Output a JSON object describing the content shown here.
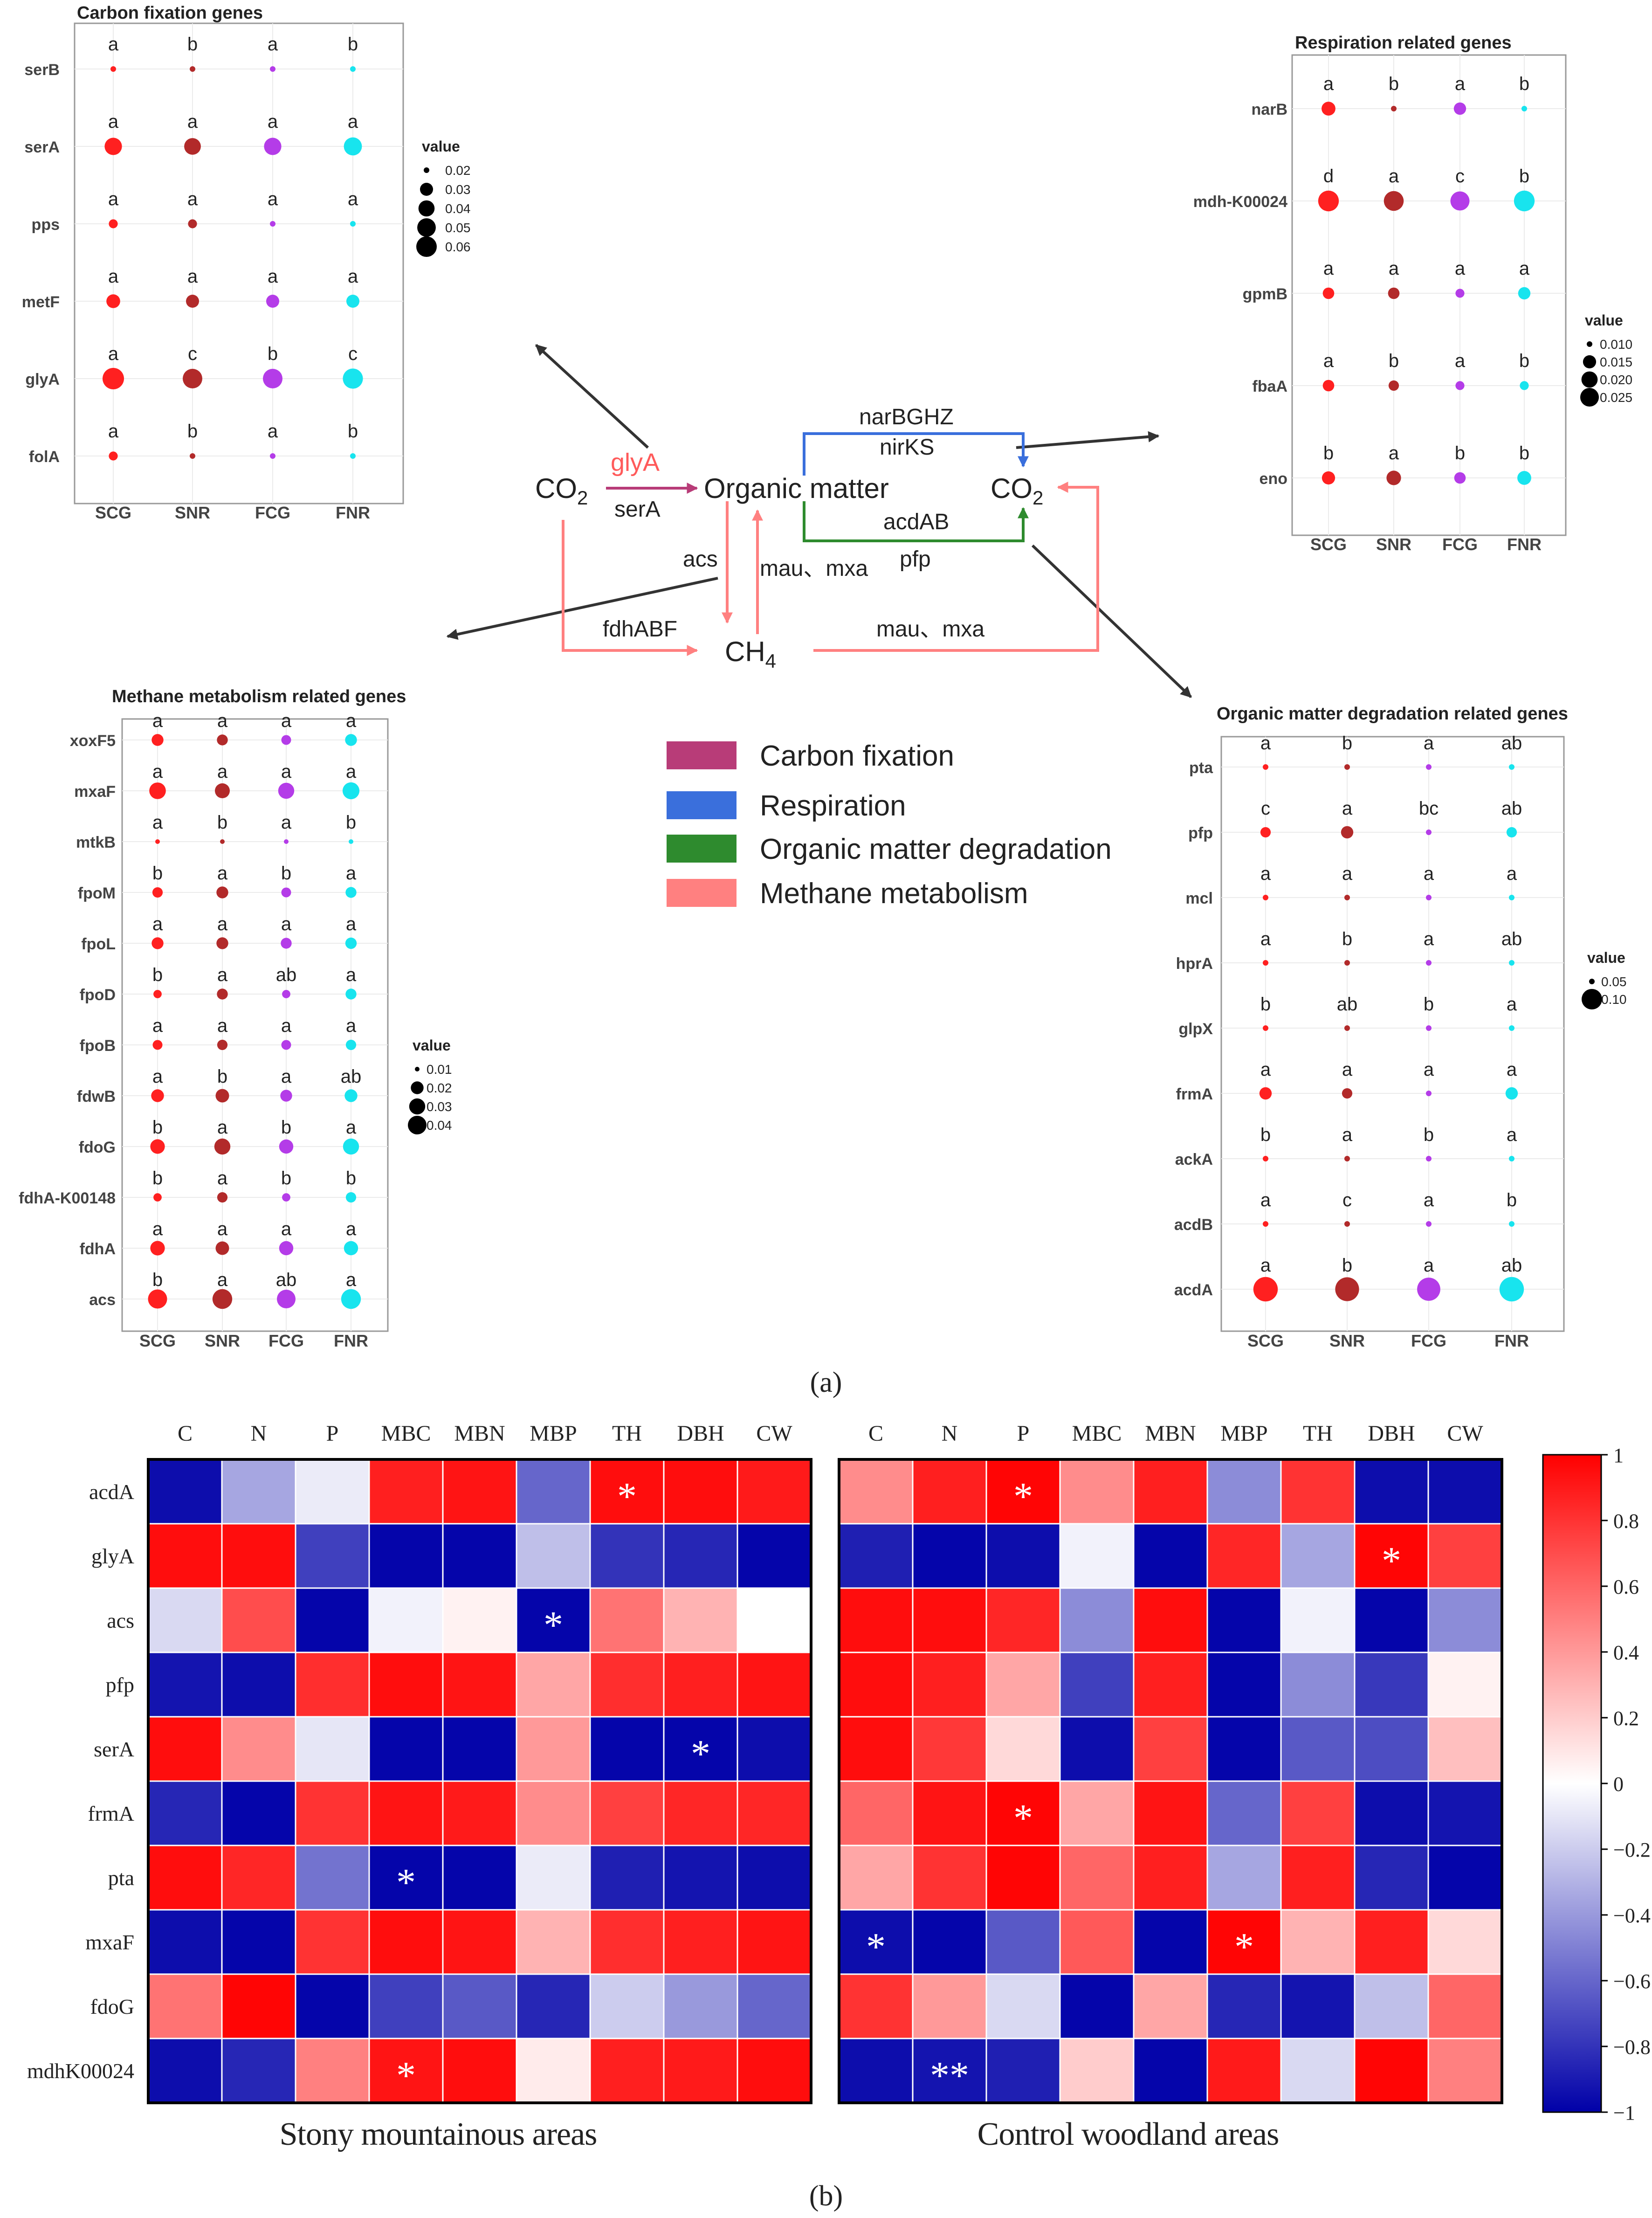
{
  "figure": {
    "panel_a_label": "(a)",
    "panel_b_label": "(b)"
  },
  "diagram": {
    "nodes": {
      "co2_left": "CO2",
      "organic_matter": "Organic matter",
      "co2_right": "CO2",
      "ch4": "CH4"
    },
    "edge_labels": {
      "glyA": "glyA",
      "serA": "serA",
      "narBGHZ": "narBGHZ",
      "nirKS": "nirKS",
      "acdAB": "acdAB",
      "pfp": "pfp",
      "acs": "acs",
      "mau_mxa_up": "mau、mxa",
      "fdhABF": "fdhABF",
      "mau_mxa_right": "mau、mxa"
    },
    "colors": {
      "carbon_fixation": "#b83c78",
      "respiration": "#3a6fdc",
      "organic_degradation": "#2e8b2e",
      "methane": "#ff8080",
      "pointer": "#333333",
      "glyA_text": "#ff5a5a"
    },
    "legend": [
      {
        "label": "Carbon fixation",
        "color": "#b83c78"
      },
      {
        "label": "Respiration",
        "color": "#3a6fdc"
      },
      {
        "label": "Organic matter degradation",
        "color": "#2e8b2e"
      },
      {
        "label": "Methane metabolism",
        "color": "#ff8080"
      }
    ]
  },
  "chart_data": [
    {
      "type": "scatter",
      "id": "carbon",
      "title": "Carbon fixation genes",
      "groups": [
        "SCG",
        "SNR",
        "FCG",
        "FNR"
      ],
      "group_colors": [
        "#ff2020",
        "#b22a2a",
        "#b43ce8",
        "#18e4ee"
      ],
      "genes": [
        {
          "name": "serB",
          "values": [
            0.015,
            0.007,
            0.015,
            0.012
          ],
          "letters": [
            "a",
            "b",
            "a",
            "b"
          ]
        },
        {
          "name": "serA",
          "values": [
            0.045,
            0.042,
            0.045,
            0.048
          ],
          "letters": [
            "a",
            "a",
            "a",
            "a"
          ]
        },
        {
          "name": "pps",
          "values": [
            0.022,
            0.022,
            0.018,
            0.02
          ],
          "letters": [
            "a",
            "a",
            "a",
            "a"
          ]
        },
        {
          "name": "metF",
          "values": [
            0.032,
            0.03,
            0.03,
            0.03
          ],
          "letters": [
            "a",
            "a",
            "a",
            "a"
          ]
        },
        {
          "name": "glyA",
          "values": [
            0.065,
            0.055,
            0.055,
            0.058
          ],
          "letters": [
            "a",
            "c",
            "b",
            "c"
          ]
        },
        {
          "name": "folA",
          "values": [
            0.022,
            0.016,
            0.018,
            0.016
          ],
          "letters": [
            "a",
            "b",
            "a",
            "b"
          ]
        }
      ],
      "legend": {
        "title": "value",
        "breaks": [
          0.02,
          0.03,
          0.04,
          0.05,
          0.06
        ],
        "labels": [
          "0.02",
          "0.03",
          "0.04",
          "0.05",
          "0.06"
        ]
      }
    },
    {
      "type": "scatter",
      "id": "resp",
      "title": "Respiration related genes",
      "groups": [
        "SCG",
        "SNR",
        "FCG",
        "FNR"
      ],
      "group_colors": [
        "#ff2020",
        "#b22a2a",
        "#b43ce8",
        "#18e4ee"
      ],
      "genes": [
        {
          "name": "narB",
          "values": [
            0.016,
            0.005,
            0.014,
            0.008
          ],
          "letters": [
            "a",
            "b",
            "a",
            "b"
          ]
        },
        {
          "name": "mdh-K00024",
          "values": [
            0.03,
            0.028,
            0.026,
            0.03
          ],
          "letters": [
            "d",
            "a",
            "c",
            "b"
          ]
        },
        {
          "name": "gpmB",
          "values": [
            0.013,
            0.013,
            0.011,
            0.014
          ],
          "letters": [
            "a",
            "a",
            "a",
            "a"
          ]
        },
        {
          "name": "fbaA",
          "values": [
            0.013,
            0.012,
            0.011,
            0.011
          ],
          "letters": [
            "a",
            "b",
            "a",
            "b"
          ]
        },
        {
          "name": "eno",
          "values": [
            0.015,
            0.017,
            0.013,
            0.016
          ],
          "letters": [
            "b",
            "a",
            "b",
            "b"
          ]
        }
      ],
      "legend": {
        "title": "value",
        "breaks": [
          0.01,
          0.015,
          0.02,
          0.025
        ],
        "labels": [
          "0.010",
          "0.015",
          "0.020",
          "0.025"
        ]
      }
    },
    {
      "type": "scatter",
      "id": "methane",
      "title": "Methane metabolism related genes",
      "groups": [
        "SCG",
        "SNR",
        "FCG",
        "FNR"
      ],
      "group_colors": [
        "#ff2020",
        "#b22a2a",
        "#b43ce8",
        "#18e4ee"
      ],
      "genes": [
        {
          "name": "xoxF5",
          "values": [
            0.018,
            0.016,
            0.014,
            0.018
          ],
          "letters": [
            "a",
            "a",
            "a",
            "a"
          ]
        },
        {
          "name": "mxaF",
          "values": [
            0.032,
            0.026,
            0.03,
            0.033
          ],
          "letters": [
            "a",
            "a",
            "a",
            "a"
          ]
        },
        {
          "name": "mtkB",
          "values": [
            0.01,
            0.005,
            0.01,
            0.006
          ],
          "letters": [
            "a",
            "b",
            "a",
            "b"
          ]
        },
        {
          "name": "fpoM",
          "values": [
            0.015,
            0.018,
            0.014,
            0.016
          ],
          "letters": [
            "b",
            "a",
            "b",
            "a"
          ]
        },
        {
          "name": "fpoL",
          "values": [
            0.018,
            0.018,
            0.016,
            0.017
          ],
          "letters": [
            "a",
            "a",
            "a",
            "a"
          ]
        },
        {
          "name": "fpoD",
          "values": [
            0.012,
            0.016,
            0.012,
            0.016
          ],
          "letters": [
            "b",
            "a",
            "ab",
            "a"
          ]
        },
        {
          "name": "fpoB",
          "values": [
            0.014,
            0.015,
            0.014,
            0.015
          ],
          "letters": [
            "a",
            "a",
            "a",
            "a"
          ]
        },
        {
          "name": "fdwB",
          "values": [
            0.02,
            0.022,
            0.018,
            0.02
          ],
          "letters": [
            "a",
            "b",
            "a",
            "ab"
          ]
        },
        {
          "name": "fdoG",
          "values": [
            0.025,
            0.03,
            0.024,
            0.03
          ],
          "letters": [
            "b",
            "a",
            "b",
            "a"
          ]
        },
        {
          "name": "fdhA-K00148",
          "values": [
            0.012,
            0.015,
            0.012,
            0.015
          ],
          "letters": [
            "b",
            "a",
            "b",
            "b"
          ]
        },
        {
          "name": "fdhA",
          "values": [
            0.025,
            0.022,
            0.024,
            0.024
          ],
          "letters": [
            "a",
            "a",
            "a",
            "a"
          ]
        },
        {
          "name": "acs",
          "values": [
            0.042,
            0.045,
            0.04,
            0.045
          ],
          "letters": [
            "b",
            "a",
            "ab",
            "a"
          ]
        }
      ],
      "legend": {
        "title": "value",
        "breaks": [
          0.01,
          0.02,
          0.03,
          0.04
        ],
        "labels": [
          "0.01",
          "0.02",
          "0.03",
          "0.04"
        ]
      }
    },
    {
      "type": "scatter",
      "id": "organic",
      "title": "Organic matter degradation related genes",
      "groups": [
        "SCG",
        "SNR",
        "FCG",
        "FNR"
      ],
      "group_colors": [
        "#ff2020",
        "#b22a2a",
        "#b43ce8",
        "#18e4ee"
      ],
      "genes": [
        {
          "name": "pta",
          "values": [
            0.05,
            0.045,
            0.04,
            0.05
          ],
          "letters": [
            "a",
            "b",
            "a",
            "ab"
          ]
        },
        {
          "name": "pfp",
          "values": [
            0.055,
            0.06,
            0.045,
            0.055
          ],
          "letters": [
            "c",
            "a",
            "bc",
            "ab"
          ]
        },
        {
          "name": "mcl",
          "values": [
            0.035,
            0.035,
            0.03,
            0.035
          ],
          "letters": [
            "a",
            "a",
            "a",
            "a"
          ]
        },
        {
          "name": "hprA",
          "values": [
            0.04,
            0.03,
            0.035,
            0.035
          ],
          "letters": [
            "a",
            "b",
            "a",
            "ab"
          ]
        },
        {
          "name": "glpX",
          "values": [
            0.035,
            0.03,
            0.03,
            0.035
          ],
          "letters": [
            "b",
            "ab",
            "b",
            "a"
          ]
        },
        {
          "name": "frmA",
          "values": [
            0.06,
            0.055,
            0.05,
            0.06
          ],
          "letters": [
            "a",
            "a",
            "a",
            "a"
          ]
        },
        {
          "name": "ackA",
          "values": [
            0.04,
            0.035,
            0.035,
            0.035
          ],
          "letters": [
            "b",
            "a",
            "b",
            "a"
          ]
        },
        {
          "name": "acdB",
          "values": [
            0.025,
            0.02,
            0.025,
            0.025
          ],
          "letters": [
            "a",
            "c",
            "a",
            "b"
          ]
        },
        {
          "name": "acdA",
          "values": [
            0.13,
            0.125,
            0.12,
            0.13
          ],
          "letters": [
            "a",
            "b",
            "a",
            "ab"
          ]
        }
      ],
      "legend": {
        "title": "value",
        "breaks": [
          0.05,
          0.1
        ],
        "labels": [
          "0.05",
          "0.10"
        ]
      }
    },
    {
      "type": "heatmap",
      "id": "stony",
      "title": "Stony mountainous areas",
      "columns": [
        "C",
        "N",
        "P",
        "MBC",
        "MBN",
        "MBP",
        "TH",
        "DBH",
        "CW"
      ],
      "rows": [
        "acdA",
        "glyA",
        "acs",
        "pfp",
        "serA",
        "frmA",
        "pta",
        "mxaF",
        "fdoG",
        "mdhK00024"
      ],
      "values": [
        [
          -0.95,
          -0.35,
          -0.08,
          0.88,
          0.92,
          -0.6,
          0.95,
          0.95,
          0.9
        ],
        [
          0.95,
          0.95,
          -0.75,
          -0.98,
          -0.98,
          -0.25,
          -0.8,
          -0.85,
          -0.98
        ],
        [
          -0.15,
          0.7,
          -0.98,
          -0.05,
          0.05,
          -0.98,
          0.55,
          0.3,
          0.0
        ],
        [
          -0.92,
          -0.95,
          0.82,
          0.95,
          0.92,
          0.35,
          0.82,
          0.88,
          0.92
        ],
        [
          0.95,
          0.45,
          -0.1,
          -0.98,
          -0.98,
          0.4,
          -0.98,
          -0.98,
          -0.95
        ],
        [
          -0.85,
          -0.98,
          0.8,
          0.92,
          0.9,
          0.45,
          0.75,
          0.85,
          0.85
        ],
        [
          0.95,
          0.85,
          -0.55,
          -0.98,
          -0.98,
          -0.08,
          -0.88,
          -0.92,
          -0.95
        ],
        [
          -0.95,
          -0.98,
          0.8,
          0.95,
          0.92,
          0.3,
          0.82,
          0.88,
          0.92
        ],
        [
          0.55,
          0.98,
          -0.98,
          -0.75,
          -0.65,
          -0.85,
          -0.2,
          -0.4,
          -0.6
        ],
        [
          -0.95,
          -0.85,
          0.5,
          0.92,
          0.95,
          0.08,
          0.88,
          0.9,
          0.95
        ]
      ],
      "stars": [
        {
          "row": 0,
          "col": 6,
          "text": "*"
        },
        {
          "row": 2,
          "col": 5,
          "text": "*"
        },
        {
          "row": 4,
          "col": 7,
          "text": "*"
        },
        {
          "row": 6,
          "col": 3,
          "text": "*"
        },
        {
          "row": 9,
          "col": 3,
          "text": "*"
        }
      ],
      "range": [
        -1,
        1
      ]
    },
    {
      "type": "heatmap",
      "id": "control",
      "title": "Control woodland areas",
      "columns": [
        "C",
        "N",
        "P",
        "MBC",
        "MBN",
        "MBP",
        "TH",
        "DBH",
        "CW"
      ],
      "rows": [
        "acdA",
        "glyA",
        "acs",
        "pfp",
        "serA",
        "frmA",
        "pta",
        "mxaF",
        "fdoG",
        "mdhK00024"
      ],
      "values": [
        [
          0.45,
          0.88,
          0.98,
          0.45,
          0.88,
          -0.45,
          0.8,
          -0.95,
          -0.95
        ],
        [
          -0.88,
          -0.98,
          -0.95,
          -0.05,
          -0.98,
          0.85,
          -0.35,
          0.98,
          0.75
        ],
        [
          0.95,
          0.95,
          0.85,
          -0.45,
          0.95,
          -0.98,
          -0.05,
          -0.98,
          -0.45
        ],
        [
          0.95,
          0.88,
          0.35,
          -0.75,
          0.88,
          -0.98,
          -0.45,
          -0.78,
          0.05
        ],
        [
          0.95,
          0.78,
          0.15,
          -0.95,
          0.75,
          -0.98,
          -0.65,
          -0.7,
          0.25
        ],
        [
          0.6,
          0.92,
          0.98,
          0.35,
          0.92,
          -0.6,
          0.75,
          -0.95,
          -0.92
        ],
        [
          0.35,
          0.8,
          0.98,
          0.6,
          0.88,
          -0.35,
          0.88,
          -0.85,
          -0.98
        ],
        [
          -0.95,
          -0.98,
          -0.65,
          0.65,
          -0.98,
          0.98,
          0.3,
          0.88,
          0.15
        ],
        [
          0.8,
          0.4,
          -0.15,
          -0.98,
          0.35,
          -0.85,
          -0.92,
          -0.25,
          0.6
        ],
        [
          -0.95,
          -0.92,
          -0.88,
          0.2,
          -0.98,
          0.9,
          -0.15,
          0.98,
          0.5
        ]
      ],
      "stars": [
        {
          "row": 0,
          "col": 2,
          "text": "*"
        },
        {
          "row": 1,
          "col": 7,
          "text": "*"
        },
        {
          "row": 5,
          "col": 2,
          "text": "*"
        },
        {
          "row": 7,
          "col": 0,
          "text": "*"
        },
        {
          "row": 7,
          "col": 5,
          "text": "*"
        },
        {
          "row": 9,
          "col": 1,
          "text": "**"
        }
      ],
      "range": [
        -1,
        1
      ]
    },
    {
      "type": "colorbar",
      "id": "colorbar",
      "range": [
        -1,
        1
      ],
      "ticks": [
        1,
        0.8,
        0.6,
        0.4,
        0.2,
        0,
        -0.2,
        -0.4,
        -0.6,
        -0.8,
        -1
      ],
      "tick_labels": [
        "1",
        "0.8",
        "0.6",
        "0.4",
        "0.2",
        "0",
        "−0.2",
        "−0.4",
        "−0.6",
        "−0.8",
        "−1"
      ],
      "colors": {
        "neg": "#0000a8",
        "mid": "#ffffff",
        "pos": "#ff0000"
      }
    }
  ]
}
